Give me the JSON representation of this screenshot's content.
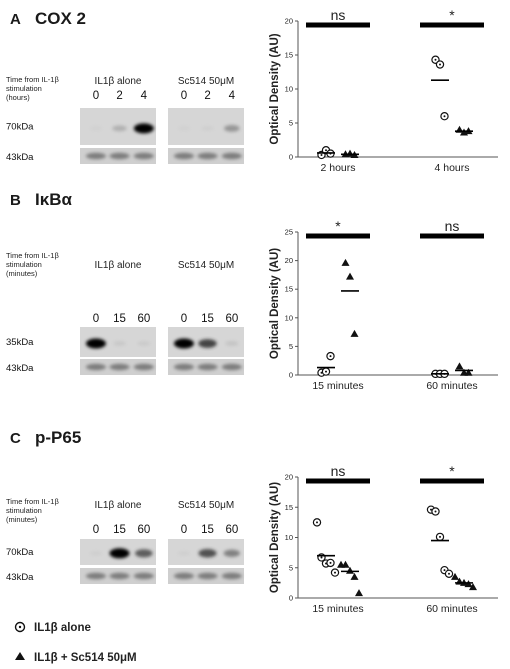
{
  "legend": {
    "circle_label": "IL1β alone",
    "triangle_label": "IL1β + Sc514 50μM"
  },
  "panels": [
    {
      "letter": "A",
      "protein": "COX 2",
      "time_label": [
        "Time from IL-1β",
        "stimulation",
        "(hours)"
      ],
      "conditions": [
        "IL1β alone",
        "Sc514 50μM"
      ],
      "lanes": [
        "0",
        "2",
        "4"
      ],
      "kda_top": "70kDa",
      "kda_bottom": "43kDa",
      "band_intensity": [
        [
          0.03,
          0.3,
          1.0
        ],
        [
          0.03,
          0.05,
          0.45
        ]
      ]
    },
    {
      "letter": "B",
      "protein": "IκBα",
      "time_label": [
        "Time from IL-1β",
        "stimulation",
        "(minutes)"
      ],
      "conditions": [
        "IL1β alone",
        "Sc514 50μM"
      ],
      "lanes": [
        "0",
        "15",
        "60"
      ],
      "kda_top": "35kDa",
      "kda_bottom": "43kDa",
      "band_intensity": [
        [
          1.0,
          0.12,
          0.1
        ],
        [
          1.0,
          0.8,
          0.15
        ]
      ]
    },
    {
      "letter": "C",
      "protein": "p-P65",
      "time_label": [
        "Time from IL-1β",
        "stimulation",
        "(minutes)"
      ],
      "conditions": [
        "IL1β alone",
        "Sc514 50μM"
      ],
      "lanes": [
        "0",
        "15",
        "60"
      ],
      "kda_top": "70kDa",
      "kda_bottom": "43kDa",
      "band_intensity": [
        [
          0.05,
          1.0,
          0.7
        ],
        [
          0.05,
          0.75,
          0.55
        ]
      ]
    }
  ],
  "chart_data": [
    {
      "type": "scatter",
      "panel": "A",
      "ylabel": "Optical Density (AU)",
      "ylim": [
        0,
        20
      ],
      "yticks": [
        "0",
        "5",
        "10",
        "15",
        "20"
      ],
      "categories": [
        "2 hours",
        "4 hours"
      ],
      "significance": [
        "ns",
        "*"
      ],
      "series": [
        {
          "name": "IL1β alone",
          "marker": "circle",
          "groups": [
            [
              0.3,
              1.0,
              0.5
            ],
            [
              14.3,
              13.6,
              6.0
            ]
          ],
          "means": [
            0.6,
            11.3
          ]
        },
        {
          "name": "IL1β + Sc514 50μM",
          "marker": "triangle",
          "groups": [
            [
              0.4,
              0.5,
              0.3
            ],
            [
              4.0,
              3.6,
              3.8
            ]
          ],
          "means": [
            0.4,
            3.8
          ]
        }
      ]
    },
    {
      "type": "scatter",
      "panel": "B",
      "ylabel": "Optical Density (AU)",
      "ylim": [
        0,
        25
      ],
      "yticks": [
        "0",
        "5",
        "10",
        "15",
        "20",
        "25"
      ],
      "categories": [
        "15 minutes",
        "60 minutes"
      ],
      "significance": [
        "*",
        "ns"
      ],
      "series": [
        {
          "name": "IL1β alone",
          "marker": "circle",
          "groups": [
            [
              0.4,
              0.6,
              3.3
            ],
            [
              0.2,
              0.2,
              0.2
            ]
          ],
          "means": [
            1.3,
            0.2
          ]
        },
        {
          "name": "IL1β + Sc514 50μM",
          "marker": "triangle",
          "groups": [
            [
              19.6,
              17.2,
              7.2
            ],
            [
              1.5,
              0.4,
              0.4
            ]
          ],
          "means": [
            14.7,
            0.8
          ]
        }
      ]
    },
    {
      "type": "scatter",
      "panel": "C",
      "ylabel": "Optical Density (AU)",
      "ylim": [
        0,
        20
      ],
      "yticks": [
        "0",
        "5",
        "10",
        "15",
        "20"
      ],
      "categories": [
        "15 minutes",
        "60 minutes"
      ],
      "significance": [
        "ns",
        "*"
      ],
      "series": [
        {
          "name": "IL1β alone",
          "marker": "circle",
          "groups": [
            [
              12.5,
              6.7,
              5.7,
              5.8,
              4.2
            ],
            [
              14.6,
              14.3,
              10.1,
              4.6,
              4.0
            ]
          ],
          "means": [
            7.0,
            9.5
          ]
        },
        {
          "name": "IL1β + Sc514 50μM",
          "marker": "triangle",
          "groups": [
            [
              5.5,
              5.5,
              4.5,
              3.5,
              0.8
            ],
            [
              3.5,
              2.7,
              2.5,
              2.3,
              1.8
            ]
          ],
          "means": [
            4.4,
            2.5
          ]
        }
      ]
    }
  ]
}
